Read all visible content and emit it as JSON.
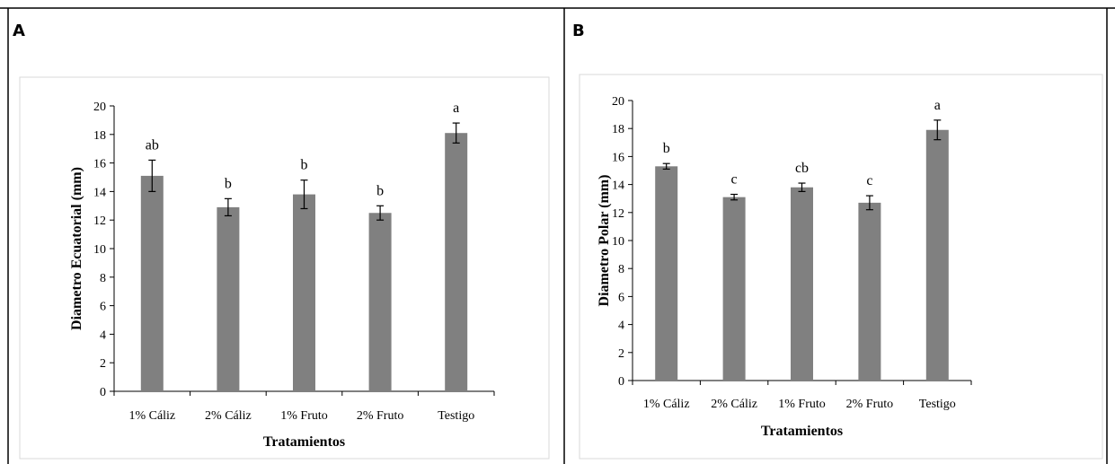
{
  "panels": [
    {
      "letter": "A",
      "chart_data": {
        "type": "bar",
        "categories": [
          "1% Cáliz",
          "2% Cáliz",
          "1% Fruto",
          "2% Fruto",
          "Testigo"
        ],
        "values": [
          15.1,
          12.9,
          13.8,
          12.5,
          18.1
        ],
        "errors": [
          1.1,
          0.6,
          1.0,
          0.5,
          0.7
        ],
        "significance": [
          "ab",
          "b",
          "b",
          "b",
          "a"
        ],
        "title": "",
        "xlabel": "Tratamientos",
        "ylabel": "Diametro Ecuatorial (mm)",
        "ylim": [
          0,
          20
        ],
        "yticks": [
          0,
          2,
          4,
          6,
          8,
          10,
          12,
          14,
          16,
          18,
          20
        ],
        "grid": false,
        "legend": "none",
        "bar_color": "#808080"
      }
    },
    {
      "letter": "B",
      "chart_data": {
        "type": "bar",
        "categories": [
          "1% Cáliz",
          "2% Cáliz",
          "1% Fruto",
          "2% Fruto",
          "Testigo"
        ],
        "values": [
          15.3,
          13.1,
          13.8,
          12.7,
          17.9
        ],
        "errors": [
          0.2,
          0.2,
          0.3,
          0.5,
          0.7
        ],
        "significance": [
          "b",
          "c",
          "cb",
          "c",
          "a"
        ],
        "title": "",
        "xlabel": "Tratamientos",
        "ylabel": "Diametro Polar (mm)",
        "ylim": [
          0,
          20
        ],
        "yticks": [
          0,
          2,
          4,
          6,
          8,
          10,
          12,
          14,
          16,
          18,
          20
        ],
        "grid": false,
        "legend": "none",
        "bar_color": "#808080"
      }
    }
  ]
}
